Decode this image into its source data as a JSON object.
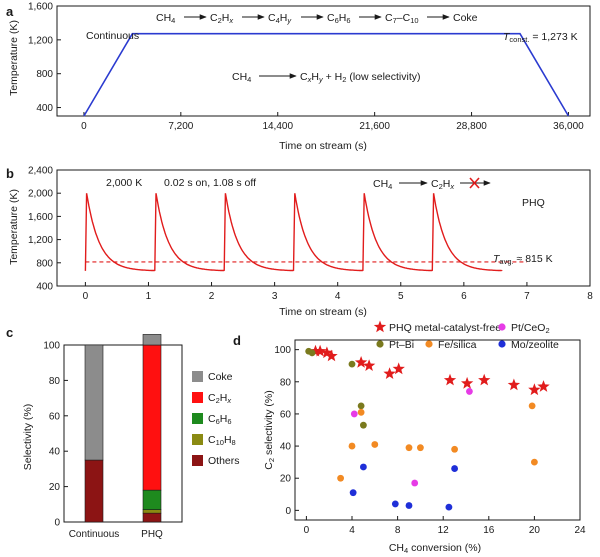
{
  "chart_data": [
    {
      "panel": "a",
      "type": "line",
      "xlabel": "Time on stream (s)",
      "ylabel": "Temperature (K)",
      "xlim": [
        -2000,
        37600
      ],
      "ylim": [
        300,
        1600
      ],
      "xticks": [
        0,
        7200,
        14400,
        21600,
        28800,
        36000
      ],
      "xtick_labels": [
        "0",
        "7,200",
        "14,400",
        "21,600",
        "28,800",
        "36,000"
      ],
      "yticks": [
        400,
        800,
        1200,
        1600
      ],
      "ytick_labels": [
        "400",
        "800",
        "1,200",
        "1,600"
      ],
      "series": [
        {
          "color": "#2b3bd0",
          "x": [
            0,
            3600,
            32400,
            36000
          ],
          "y": [
            300,
            1273,
            1273,
            300
          ]
        }
      ],
      "label_continuous": "Continuous",
      "label_tconst": "T",
      "label_tconst_sub": "const.",
      "label_tconst_val": " = 1,273 K",
      "reaction1": [
        "CH",
        "4",
        "C",
        "2",
        "H",
        "x",
        "C",
        "4",
        "H",
        "y",
        "C",
        "6",
        "H",
        "6",
        "C",
        "7",
        "–C",
        "10",
        "Coke"
      ],
      "reaction2": [
        "CH",
        "4",
        "C",
        "x",
        "H",
        "y",
        " + H",
        "2",
        " (low selectivity)"
      ]
    },
    {
      "panel": "b",
      "type": "line",
      "xlabel": "Time on stream (s)",
      "ylabel": "Temperature (K)",
      "xlim": [
        -0.45,
        8.0
      ],
      "ylim": [
        400,
        2400
      ],
      "xticks": [
        0,
        1,
        2,
        3,
        4,
        5,
        6,
        7,
        8
      ],
      "yticks": [
        400,
        800,
        1200,
        1600,
        2000,
        2400
      ],
      "ytick_labels": [
        "400",
        "800",
        "1,200",
        "1,600",
        "2,000",
        "2,400"
      ],
      "pulses": {
        "start_times": [
          0,
          1.1,
          2.2,
          3.3,
          4.4,
          5.5
        ],
        "period": 1.1,
        "t_on": 0.02,
        "T_peak": 2000,
        "T_base": 660,
        "decay_tau": 0.2,
        "end": 6.6,
        "color": "#e11c1c"
      },
      "reference_line": {
        "y": 815,
        "style": "dashed",
        "color": "#e11c1c"
      },
      "label_peak": "2,000 K",
      "label_timing": "0.02 s on, 1.08 s off",
      "label_phq": "PHQ",
      "label_tavg": "T",
      "label_tavg_sub": "avg.",
      "label_tavg_val": " ≈ 815 K",
      "reaction": [
        "CH",
        "4",
        "C",
        "2",
        "H",
        "x"
      ]
    },
    {
      "panel": "c",
      "type": "bar",
      "stacked": true,
      "ylabel": "Selectivity (%)",
      "ylim": [
        0,
        100
      ],
      "yticks": [
        0,
        20,
        40,
        60,
        80,
        100
      ],
      "categories": [
        "Continuous",
        "PHQ"
      ],
      "series": [
        {
          "name": "Others",
          "sub": "",
          "color": "#8c1414",
          "values": [
            35,
            5
          ]
        },
        {
          "name": "C",
          "sub": "10",
          "name2": "H",
          "sub2": "8",
          "color": "#8a8a12",
          "values": [
            0,
            2
          ]
        },
        {
          "name": "C",
          "sub": "6",
          "name2": "H",
          "sub2": "6",
          "color": "#1e8a1e",
          "values": [
            0,
            11
          ]
        },
        {
          "name": "C",
          "sub": "2",
          "name2": "H",
          "sub2": "x",
          "color": "#ff1010",
          "values": [
            0,
            82
          ]
        },
        {
          "name": "Coke",
          "sub": "",
          "color": "#8c8c8c",
          "values": [
            65,
            6
          ]
        }
      ],
      "legend_order": [
        "Coke",
        "C2Hx",
        "C6H6",
        "C10H8",
        "Others"
      ]
    },
    {
      "panel": "d",
      "type": "scatter",
      "xlabel": "CH",
      "xlabel_sub": "4",
      "xlabel_rest": " conversion (%)",
      "ylabel": "C",
      "ylabel_sub": "2",
      "ylabel_rest": " selectivity (%)",
      "xlim": [
        -1,
        24
      ],
      "ylim": [
        -6,
        106
      ],
      "xticks": [
        0,
        4,
        8,
        12,
        16,
        20,
        24
      ],
      "yticks": [
        0,
        20,
        40,
        60,
        80,
        100
      ],
      "series": [
        {
          "name": "PHQ metal-catalyst-free",
          "marker": "star",
          "color": "#e11c1c",
          "x": [
            0.8,
            1.2,
            1.8,
            2.2,
            4.8,
            5.5,
            7.3,
            8.1,
            12.6,
            14.1,
            15.6,
            18.2,
            20.0,
            20.8
          ],
          "y": [
            99,
            99,
            98,
            96,
            92,
            90,
            85,
            88,
            81,
            79,
            81,
            78,
            75,
            77
          ]
        },
        {
          "name": "Pt/CeO",
          "sub": "2",
          "marker": "circle",
          "color": "#e63be6",
          "x": [
            4.2,
            9.5,
            14.3
          ],
          "y": [
            60,
            17,
            74
          ]
        },
        {
          "name": "Pt–Bi",
          "marker": "circle",
          "color": "#7a7a1e",
          "x": [
            0.2,
            0.5,
            4.0,
            4.8,
            5.0
          ],
          "y": [
            99,
            98,
            91,
            65,
            53
          ]
        },
        {
          "name": "Fe/silica",
          "marker": "circle",
          "color": "#f28a23",
          "x": [
            3.0,
            4.0,
            4.8,
            6.0,
            9.0,
            10.0,
            13.0,
            19.8,
            20.0
          ],
          "y": [
            20,
            40,
            61,
            41,
            39,
            39,
            38,
            65,
            30
          ]
        },
        {
          "name": "Mo/zeolite",
          "marker": "circle",
          "color": "#1f2fd8",
          "x": [
            4.1,
            5.0,
            7.8,
            9.0,
            12.5,
            13.0
          ],
          "y": [
            11,
            27,
            4,
            3,
            2,
            26
          ]
        }
      ]
    }
  ]
}
